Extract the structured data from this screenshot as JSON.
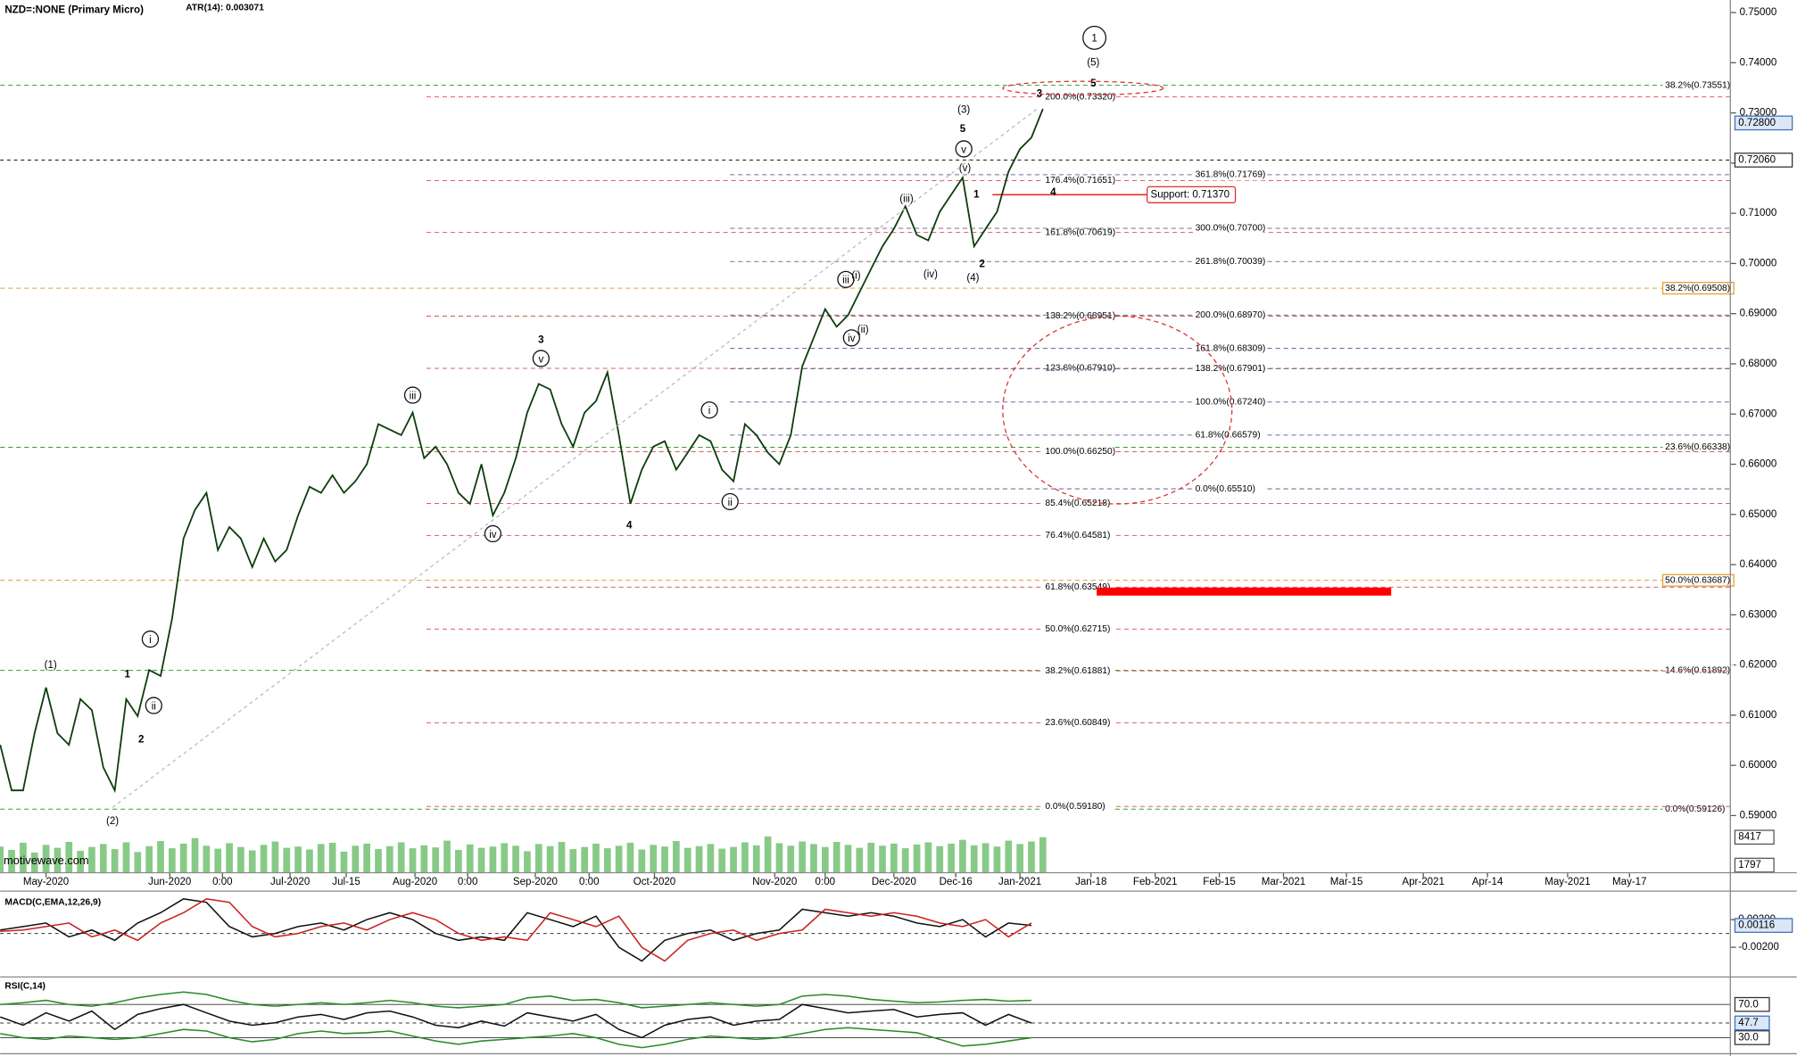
{
  "chart_data": [
    {
      "type": "line",
      "title": "NZD=:NONE (Primary Micro)",
      "subtitle": "ATR(14): 0.003071",
      "watermark": "motivewave.com",
      "color": "#0b3d0b",
      "x_tick_labels": [
        "May-2020",
        "Jun-2020",
        "0:00",
        "Jul-2020",
        "Jul-15",
        "Aug-2020",
        "0:00",
        "Sep-2020",
        "0:00",
        "Oct-2020",
        "Nov-2020",
        "0:00",
        "Dec-2020",
        "Dec-16",
        "Jan-2021",
        "Jan-18",
        "Feb-2021",
        "Feb-15",
        "Mar-2021",
        "Mar-15",
        "Apr-2021",
        "Apr-14",
        "May-2021",
        "May-17"
      ],
      "values": [
        0.6041,
        0.595,
        0.595,
        0.6064,
        0.6155,
        0.6064,
        0.6041,
        0.6132,
        0.611,
        0.5996,
        0.595,
        0.6132,
        0.6098,
        0.619,
        0.6178,
        0.6292,
        0.6452,
        0.6509,
        0.6543,
        0.6429,
        0.6475,
        0.6452,
        0.6395,
        0.6452,
        0.6406,
        0.6429,
        0.6498,
        0.6555,
        0.6543,
        0.6578,
        0.6543,
        0.6566,
        0.66,
        0.668,
        0.6669,
        0.6658,
        0.6703,
        0.6612,
        0.6635,
        0.66,
        0.6543,
        0.6521,
        0.66,
        0.6498,
        0.6543,
        0.6612,
        0.6703,
        0.676,
        0.6749,
        0.668,
        0.6635,
        0.6703,
        0.6726,
        0.6783,
        0.6658,
        0.6521,
        0.6589,
        0.6635,
        0.6646,
        0.6589,
        0.6623,
        0.6658,
        0.6646,
        0.6589,
        0.6566,
        0.668,
        0.6658,
        0.6623,
        0.66,
        0.6658,
        0.6795,
        0.6852,
        0.6909,
        0.6874,
        0.6897,
        0.6943,
        0.6989,
        0.7034,
        0.7069,
        0.7114,
        0.7057,
        0.7046,
        0.7103,
        0.7137,
        0.7171,
        0.7034,
        0.7069,
        0.7103,
        0.7183,
        0.7228,
        0.7251,
        0.7308
      ],
      "ylim": [
        0.5786,
        0.7525
      ],
      "yticks": [
        {
          "value": 0.59,
          "label": "0.59000"
        },
        {
          "value": 0.6,
          "label": "0.60000"
        },
        {
          "value": 0.61,
          "label": "0.61000"
        },
        {
          "value": 0.62,
          "label": "0.62000"
        },
        {
          "value": 0.63,
          "label": "0.63000"
        },
        {
          "value": 0.64,
          "label": "0.64000"
        },
        {
          "value": 0.65,
          "label": "0.65000"
        },
        {
          "value": 0.66,
          "label": "0.66000"
        },
        {
          "value": 0.67,
          "label": "0.67000"
        },
        {
          "value": 0.68,
          "label": "0.68000"
        },
        {
          "value": 0.69,
          "label": "0.69000"
        },
        {
          "value": 0.7,
          "label": "0.70000"
        },
        {
          "value": 0.71,
          "label": "0.71000"
        },
        {
          "value": 0.72,
          "label": "0.72000"
        },
        {
          "value": 0.73,
          "label": "0.73000"
        },
        {
          "value": 0.74,
          "label": "0.74000"
        },
        {
          "value": 0.75,
          "label": "0.75000"
        }
      ],
      "last_price": {
        "value": 0.728,
        "label": "0.72800"
      },
      "reference_price": {
        "value": 0.7206,
        "label": "0.72060"
      },
      "support": {
        "value": 0.7137,
        "label": "Support: 0.71370"
      },
      "retracement_levels": [
        {
          "value": 0.7332,
          "label": "200.0%(0.73320)",
          "color": "#e06060"
        },
        {
          "value": 0.71651,
          "label": "176.4%(0.71651)",
          "color": "#e06060"
        },
        {
          "value": 0.70619,
          "label": "161.8%(0.70619)",
          "color": "#e06060"
        },
        {
          "value": 0.68951,
          "label": "138.2%(0.68951)",
          "color": "#e06060"
        },
        {
          "value": 0.6791,
          "label": "123.6%(0.67910)",
          "color": "#e06060"
        },
        {
          "value": 0.6625,
          "label": "100.0%(0.66250)",
          "color": "#e06060"
        },
        {
          "value": 0.65218,
          "label": "85.4%(0.65218)",
          "color": "#e06060"
        },
        {
          "value": 0.64581,
          "label": "76.4%(0.64581)",
          "color": "#e06060"
        },
        {
          "value": 0.63549,
          "label": "61.8%(0.63549)",
          "color": "#e06060"
        },
        {
          "value": 0.62715,
          "label": "50.0%(0.62715)",
          "color": "#e06060"
        },
        {
          "value": 0.61881,
          "label": "38.2%(0.61881)",
          "color": "#e06060"
        },
        {
          "value": 0.60849,
          "label": "23.6%(0.60849)",
          "color": "#e06060"
        },
        {
          "value": 0.5918,
          "label": "0.0%(0.59180)",
          "color": "#e06060"
        }
      ],
      "extension_levels": [
        {
          "value": 0.71769,
          "label": "361.8%(0.71769)",
          "color": "#7070a0"
        },
        {
          "value": 0.707,
          "label": "300.0%(0.70700)",
          "color": "#7070a0"
        },
        {
          "value": 0.70039,
          "label": "261.8%(0.70039)",
          "color": "#7070a0"
        },
        {
          "value": 0.6897,
          "label": "200.0%(0.68970)",
          "color": "#7070a0"
        },
        {
          "value": 0.68309,
          "label": "161.8%(0.68309)",
          "color": "#7070a0"
        },
        {
          "value": 0.67901,
          "label": "138.2%(0.67901)",
          "color": "#7070a0"
        },
        {
          "value": 0.6724,
          "label": "100.0%(0.67240)",
          "color": "#7070a0"
        },
        {
          "value": 0.66579,
          "label": "61.8%(0.66579)",
          "color": "#7070a0"
        },
        {
          "value": 0.6551,
          "label": "0.0%(0.65510)",
          "color": "#7070a0"
        }
      ],
      "long_term_levels": [
        {
          "value": 0.73551,
          "label": "38.2%(0.73551)",
          "color": "#30a030"
        },
        {
          "value": 0.69508,
          "label": "38.2%(0.69508)",
          "color": "#e0a030"
        },
        {
          "value": 0.66338,
          "label": "23.6%(0.66338)",
          "color": "#30a030"
        },
        {
          "value": 0.63687,
          "label": "50.0%(0.63687)",
          "color": "#e0a030"
        },
        {
          "value": 0.61892,
          "label": "14.6%(0.61892)",
          "color": "#30a030"
        },
        {
          "value": 0.59126,
          "label": "0.0%(0.59126)",
          "color": "#30a030"
        }
      ],
      "wave_labels": [
        {
          "text": "(1)",
          "circled": false,
          "bold": false
        },
        {
          "text": "(2)",
          "circled": false,
          "bold": false
        },
        {
          "text": "1",
          "circled": false,
          "bold": true
        },
        {
          "text": "2",
          "circled": false,
          "bold": true
        },
        {
          "text": "i",
          "circled": true,
          "bold": false
        },
        {
          "text": "ii",
          "circled": true,
          "bold": false
        },
        {
          "text": "iii",
          "circled": true,
          "bold": false
        },
        {
          "text": "3",
          "circled": false,
          "bold": true
        },
        {
          "text": "v",
          "circled": true,
          "bold": false
        },
        {
          "text": "iv",
          "circled": true,
          "bold": false
        },
        {
          "text": "4",
          "circled": false,
          "bold": true
        },
        {
          "text": "i",
          "circled": true,
          "bold": false
        },
        {
          "text": "ii",
          "circled": true,
          "bold": false
        },
        {
          "text": "iv",
          "circled": true,
          "bold": false
        },
        {
          "text": "(ii)",
          "circled": false,
          "bold": false
        },
        {
          "text": "iii",
          "circled": true,
          "bold": false
        },
        {
          "text": "(i)",
          "circled": false,
          "bold": false
        },
        {
          "text": "(iii)",
          "circled": false,
          "bold": false
        },
        {
          "text": "(iv)",
          "circled": false,
          "bold": false
        },
        {
          "text": "(4)",
          "circled": false,
          "bold": false
        },
        {
          "text": "2",
          "circled": false,
          "bold": true
        },
        {
          "text": "1",
          "circled": false,
          "bold": true
        },
        {
          "text": "(v)",
          "circled": false,
          "bold": false
        },
        {
          "text": "v",
          "circled": true,
          "bold": false
        },
        {
          "text": "5",
          "circled": false,
          "bold": true
        },
        {
          "text": "(3)",
          "circled": false,
          "bold": false
        },
        {
          "text": "4",
          "circled": false,
          "bold": true
        },
        {
          "text": "3",
          "circled": false,
          "bold": true
        },
        {
          "text": "5",
          "circled": false,
          "bold": true
        },
        {
          "text": "(5)",
          "circled": false,
          "bold": false
        },
        {
          "text": "1",
          "circled": true,
          "bold": false
        }
      ],
      "volume": {
        "color": "#5fb85f",
        "ylim": [
          0,
          16000
        ],
        "yticks": [
          8417,
          1797
        ],
        "values": [
          6200,
          5400,
          7100,
          4800,
          6600,
          5900,
          7300,
          5200,
          6100,
          6800,
          5600,
          7200,
          4900,
          6300,
          7500,
          5800,
          6900,
          8200,
          6400,
          5700,
          7000,
          6100,
          5300,
          6600,
          7400,
          5900,
          6200,
          5500,
          6800,
          7100,
          5000,
          6400,
          6900,
          5600,
          6300,
          7200,
          5800,
          6500,
          6000,
          7600,
          5400,
          6700,
          5900,
          6200,
          7000,
          6400,
          5100,
          6800,
          6300,
          7300,
          5600,
          6100,
          6900,
          5800,
          6400,
          7100,
          5500,
          6600,
          6200,
          7500,
          5900,
          6300,
          6800,
          5700,
          6100,
          7200,
          6500,
          8600,
          7000,
          6400,
          7400,
          6800,
          6100,
          7300,
          6600,
          5900,
          7100,
          6400,
          6900,
          5800,
          6700,
          7200,
          6300,
          6900,
          7800,
          6500,
          7000,
          6200,
          7600,
          6800,
          7400,
          8417
        ]
      }
    },
    {
      "type": "line",
      "title": "MACD(C,EMA,12,26,9)",
      "ylim": [
        -0.0058,
        0.0058
      ],
      "yticks": [
        {
          "value": 0.002,
          "label": "0.00200"
        },
        {
          "value": -0.002,
          "label": "-0.00200"
        }
      ],
      "last_value": {
        "value": 0.00116,
        "label": "0.00116"
      },
      "series": [
        {
          "color": "#111111",
          "values": [
            0.0005,
            0.001,
            0.0015,
            -0.0005,
            0.0005,
            -0.001,
            0.0015,
            0.003,
            0.005,
            0.0045,
            0.001,
            -0.0005,
            0,
            0.001,
            0.0015,
            0.0005,
            0.002,
            0.003,
            0.002,
            0,
            -0.001,
            -0.0005,
            -0.001,
            0.003,
            0.002,
            0.001,
            0.0025,
            -0.002,
            -0.004,
            -0.001,
            0,
            0.0005,
            -0.001,
            0,
            0.0005,
            0.0035,
            0.003,
            0.0025,
            0.003,
            0.0025,
            0.0015,
            0.001,
            0.002,
            -0.0005,
            0.0015,
            0.00116
          ]
        },
        {
          "color": "#cc2020",
          "values": [
            0.0003,
            0.0005,
            0.001,
            0.0015,
            -0.0005,
            0.0005,
            -0.001,
            0.0015,
            0.003,
            0.005,
            0.0045,
            0.001,
            -0.0005,
            0,
            0.001,
            0.0015,
            0.0005,
            0.002,
            0.003,
            0.002,
            0,
            -0.001,
            -0.0005,
            -0.001,
            0.003,
            0.002,
            0.001,
            0.0025,
            -0.002,
            -0.004,
            -0.001,
            0,
            0.0005,
            -0.001,
            0,
            0.0005,
            0.0035,
            0.003,
            0.0025,
            0.003,
            0.0025,
            0.0015,
            0.001,
            0.002,
            -0.0005,
            0.0015
          ]
        }
      ]
    },
    {
      "type": "line",
      "title": "RSI(C,14)",
      "ylim": [
        17.6,
        96.2
      ],
      "yticks": [
        {
          "value": 70,
          "label": "70.0"
        },
        {
          "value": 30,
          "label": "30.0"
        }
      ],
      "last_value": 47.7,
      "series": [
        {
          "color": "#111111",
          "values": [
            55,
            45,
            60,
            50,
            62,
            40,
            58,
            65,
            70,
            60,
            50,
            45,
            48,
            55,
            58,
            52,
            60,
            62,
            55,
            45,
            42,
            50,
            44,
            60,
            55,
            50,
            58,
            40,
            30,
            45,
            52,
            55,
            45,
            50,
            52,
            70,
            65,
            60,
            62,
            64,
            55,
            58,
            60,
            45,
            58,
            47.7
          ]
        },
        {
          "color": "#2a8a2a",
          "values": [
            70,
            72,
            75,
            70,
            68,
            72,
            78,
            82,
            85,
            82,
            75,
            70,
            68,
            70,
            72,
            70,
            72,
            75,
            72,
            68,
            66,
            68,
            70,
            78,
            80,
            75,
            76,
            72,
            66,
            68,
            70,
            72,
            70,
            68,
            70,
            80,
            82,
            80,
            76,
            74,
            72,
            73,
            75,
            76,
            74,
            75
          ]
        },
        {
          "color": "#2a8a2a",
          "values": [
            35,
            30,
            28,
            32,
            30,
            28,
            30,
            35,
            40,
            38,
            30,
            25,
            28,
            35,
            38,
            35,
            36,
            38,
            32,
            26,
            22,
            26,
            28,
            30,
            32,
            35,
            30,
            22,
            18,
            22,
            28,
            32,
            30,
            28,
            30,
            35,
            40,
            42,
            40,
            38,
            36,
            28,
            20,
            22,
            26,
            30
          ]
        }
      ]
    }
  ]
}
